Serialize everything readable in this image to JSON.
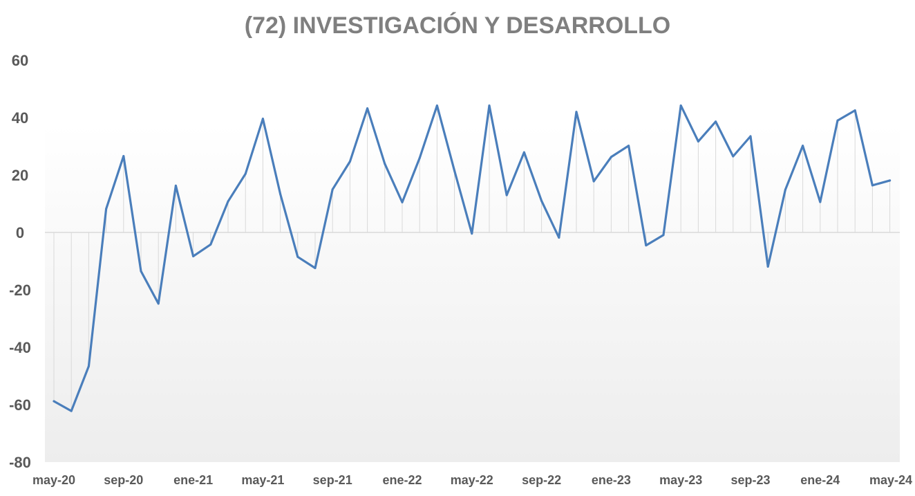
{
  "chart_data": {
    "type": "line",
    "title": "(72) INVESTIGACIÓN Y DESARROLLO",
    "xlabel": "",
    "ylabel": "",
    "ylim": [
      -80,
      60
    ],
    "y_ticks": [
      60,
      40,
      20,
      0,
      -20,
      -40,
      -60,
      -80
    ],
    "x_tick_labels": [
      "may-20",
      "sep-20",
      "ene-21",
      "may-21",
      "sep-21",
      "ene-22",
      "may-22",
      "sep-22",
      "ene-23",
      "may-23",
      "sep-23",
      "ene-24",
      "may-24"
    ],
    "x": [
      "may-20",
      "jun-20",
      "jul-20",
      "ago-20",
      "sep-20",
      "oct-20",
      "nov-20",
      "dic-20",
      "ene-21",
      "feb-21",
      "mar-21",
      "abr-21",
      "may-21",
      "jun-21",
      "jul-21",
      "ago-21",
      "sep-21",
      "oct-21",
      "nov-21",
      "dic-21",
      "ene-22",
      "feb-22",
      "mar-22",
      "abr-22",
      "may-22",
      "jun-22",
      "jul-22",
      "ago-22",
      "sep-22",
      "oct-22",
      "nov-22",
      "dic-22",
      "ene-23",
      "feb-23",
      "mar-23",
      "abr-23",
      "may-23",
      "jun-23",
      "jul-23",
      "ago-23",
      "sep-23",
      "oct-23",
      "nov-23",
      "dic-23",
      "ene-24",
      "feb-24",
      "mar-24",
      "abr-24",
      "may-24"
    ],
    "series": [
      {
        "values": [
          -58.8,
          -62.2,
          -46.6,
          8.2,
          26.6,
          -13.5,
          -24.8,
          16.3,
          -8.3,
          -4.2,
          10.8,
          20.4,
          39.6,
          13.4,
          -8.5,
          -12.4,
          15.0,
          24.7,
          43.2,
          23.9,
          10.5,
          25.9,
          44.2,
          21.5,
          -0.4,
          44.2,
          13.0,
          27.9,
          11.0,
          -1.8,
          42.0,
          17.8,
          26.3,
          30.2,
          -4.5,
          -0.9,
          44.2,
          31.7,
          38.6,
          26.5,
          33.5,
          -11.9,
          14.9,
          30.2,
          10.6,
          39.0,
          42.5,
          16.4,
          18.1
        ]
      }
    ],
    "grid": false,
    "legend": "none",
    "colors": {
      "line": "#4a7ebb",
      "drop_lines": "#d9d9d9",
      "zero_line": "#d9d9d9",
      "plot_bg_top": "#ffffff",
      "plot_bg_bottom": "#ededed",
      "title": "#7f7f7f",
      "tick_labels": "#595959"
    }
  }
}
